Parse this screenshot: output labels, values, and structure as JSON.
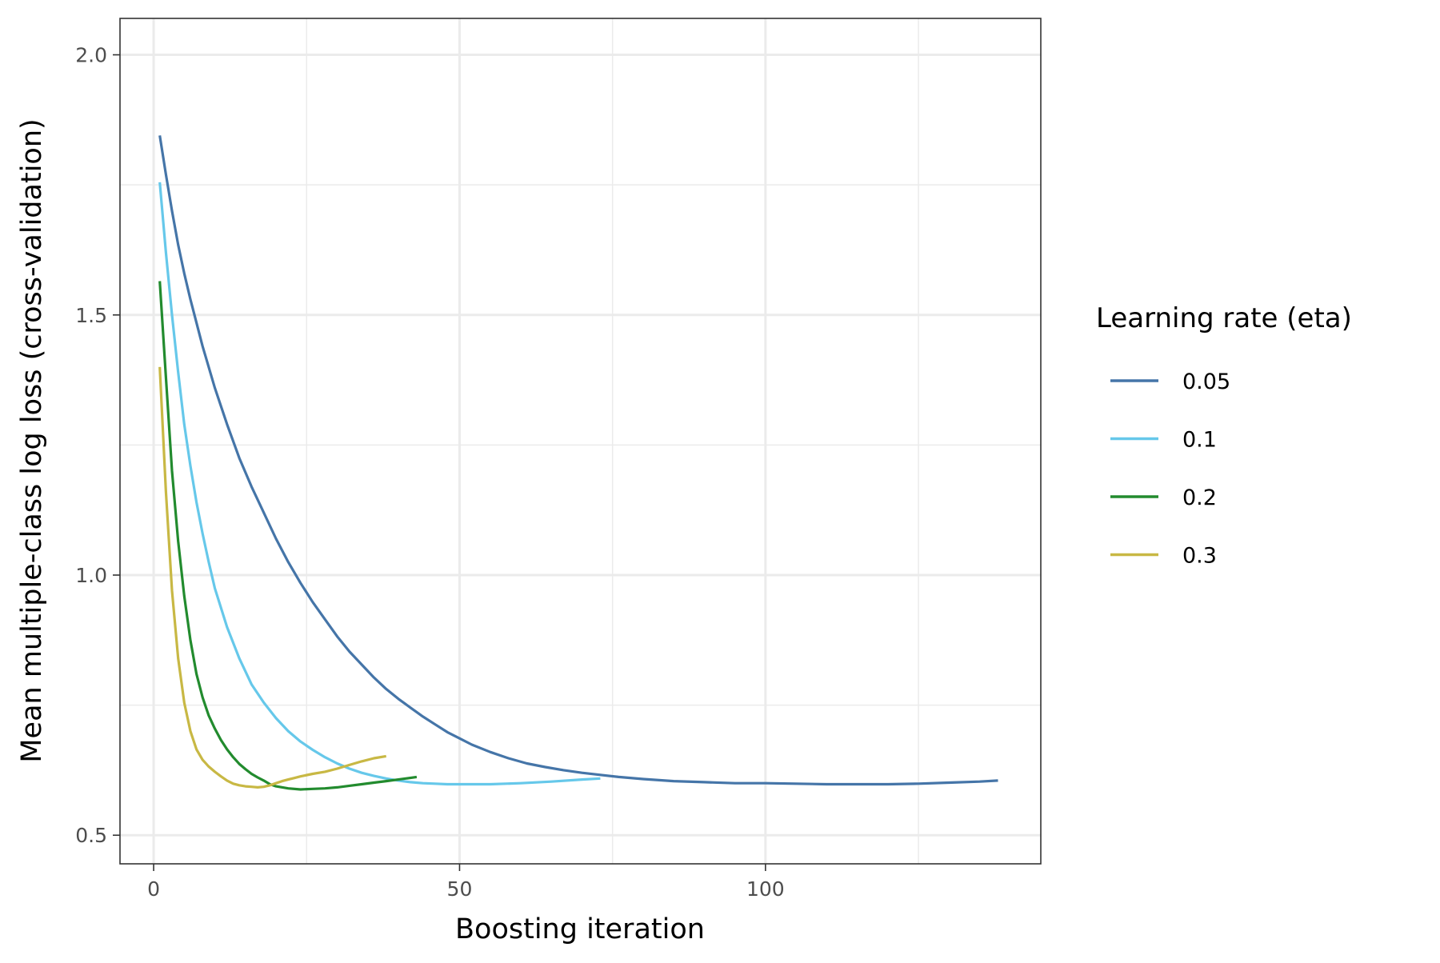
{
  "chart_data": {
    "type": "line",
    "xlabel": "Boosting iteration",
    "ylabel": "Mean multiple-class log loss (cross-validation)",
    "xlim": [
      -5.5,
      145
    ],
    "ylim": [
      0.445,
      2.07
    ],
    "x_ticks": [
      0,
      50,
      100
    ],
    "x_tick_labels": [
      "0",
      "50",
      "100"
    ],
    "x_minor_ticks": [
      25,
      75,
      125
    ],
    "y_ticks": [
      0.5,
      1.0,
      1.5,
      2.0
    ],
    "y_tick_labels": [
      "0.5",
      "1.0",
      "1.5",
      "2.0"
    ],
    "y_minor_ticks": [
      0.75,
      1.25,
      1.75
    ],
    "grid": true,
    "legend": {
      "title": "Learning rate (eta)",
      "position": "right"
    },
    "series": [
      {
        "name": "0.05",
        "color": "#4575a8",
        "x": [
          1,
          2,
          3,
          4,
          5,
          6,
          8,
          10,
          12,
          14,
          16,
          18,
          20,
          22,
          24,
          26,
          28,
          30,
          32,
          34,
          36,
          38,
          40,
          42,
          44,
          46,
          48,
          50,
          52,
          55,
          58,
          61,
          64,
          67,
          70,
          73,
          76,
          80,
          85,
          90,
          95,
          100,
          105,
          110,
          115,
          120,
          125,
          130,
          135,
          138
        ],
        "y": [
          1.845,
          1.77,
          1.7,
          1.635,
          1.58,
          1.53,
          1.44,
          1.36,
          1.29,
          1.225,
          1.17,
          1.12,
          1.07,
          1.025,
          0.985,
          0.948,
          0.915,
          0.882,
          0.853,
          0.828,
          0.803,
          0.781,
          0.762,
          0.745,
          0.728,
          0.713,
          0.698,
          0.686,
          0.674,
          0.66,
          0.648,
          0.638,
          0.631,
          0.625,
          0.62,
          0.616,
          0.612,
          0.608,
          0.604,
          0.602,
          0.6,
          0.6,
          0.599,
          0.598,
          0.598,
          0.598,
          0.599,
          0.601,
          0.603,
          0.605
        ]
      },
      {
        "name": "0.1",
        "color": "#66c8ea",
        "x": [
          1,
          2,
          3,
          4,
          5,
          6,
          7,
          8,
          9,
          10,
          12,
          14,
          16,
          18,
          20,
          22,
          24,
          26,
          28,
          30,
          32,
          34,
          36,
          38,
          40,
          42,
          44,
          46,
          48,
          50,
          55,
          60,
          65,
          70,
          73
        ],
        "y": [
          1.755,
          1.62,
          1.5,
          1.39,
          1.29,
          1.21,
          1.14,
          1.08,
          1.025,
          0.975,
          0.9,
          0.84,
          0.79,
          0.755,
          0.725,
          0.7,
          0.68,
          0.664,
          0.65,
          0.638,
          0.628,
          0.62,
          0.614,
          0.609,
          0.605,
          0.602,
          0.6,
          0.599,
          0.598,
          0.598,
          0.598,
          0.6,
          0.603,
          0.607,
          0.609
        ]
      },
      {
        "name": "0.2",
        "color": "#228b2e",
        "x": [
          1,
          2,
          3,
          4,
          5,
          6,
          7,
          8,
          9,
          10,
          11,
          12,
          13,
          14,
          15,
          16,
          17,
          18,
          19,
          20,
          22,
          24,
          26,
          28,
          30,
          32,
          34,
          36,
          38,
          40,
          43
        ],
        "y": [
          1.565,
          1.38,
          1.2,
          1.065,
          0.96,
          0.875,
          0.81,
          0.765,
          0.73,
          0.705,
          0.683,
          0.665,
          0.65,
          0.637,
          0.627,
          0.618,
          0.611,
          0.605,
          0.598,
          0.594,
          0.59,
          0.588,
          0.589,
          0.59,
          0.592,
          0.595,
          0.598,
          0.601,
          0.604,
          0.607,
          0.612
        ]
      },
      {
        "name": "0.3",
        "color": "#c8b844",
        "x": [
          1,
          2,
          3,
          4,
          5,
          6,
          7,
          8,
          9,
          10,
          11,
          12,
          13,
          14,
          15,
          16,
          17,
          18,
          19,
          20,
          21,
          22,
          23,
          24,
          26,
          28,
          30,
          32,
          34,
          36,
          38
        ],
        "y": [
          1.4,
          1.16,
          0.97,
          0.84,
          0.755,
          0.7,
          0.665,
          0.645,
          0.632,
          0.622,
          0.613,
          0.605,
          0.599,
          0.596,
          0.594,
          0.593,
          0.592,
          0.593,
          0.596,
          0.6,
          0.604,
          0.607,
          0.61,
          0.613,
          0.618,
          0.622,
          0.628,
          0.635,
          0.642,
          0.648,
          0.652
        ]
      }
    ]
  }
}
